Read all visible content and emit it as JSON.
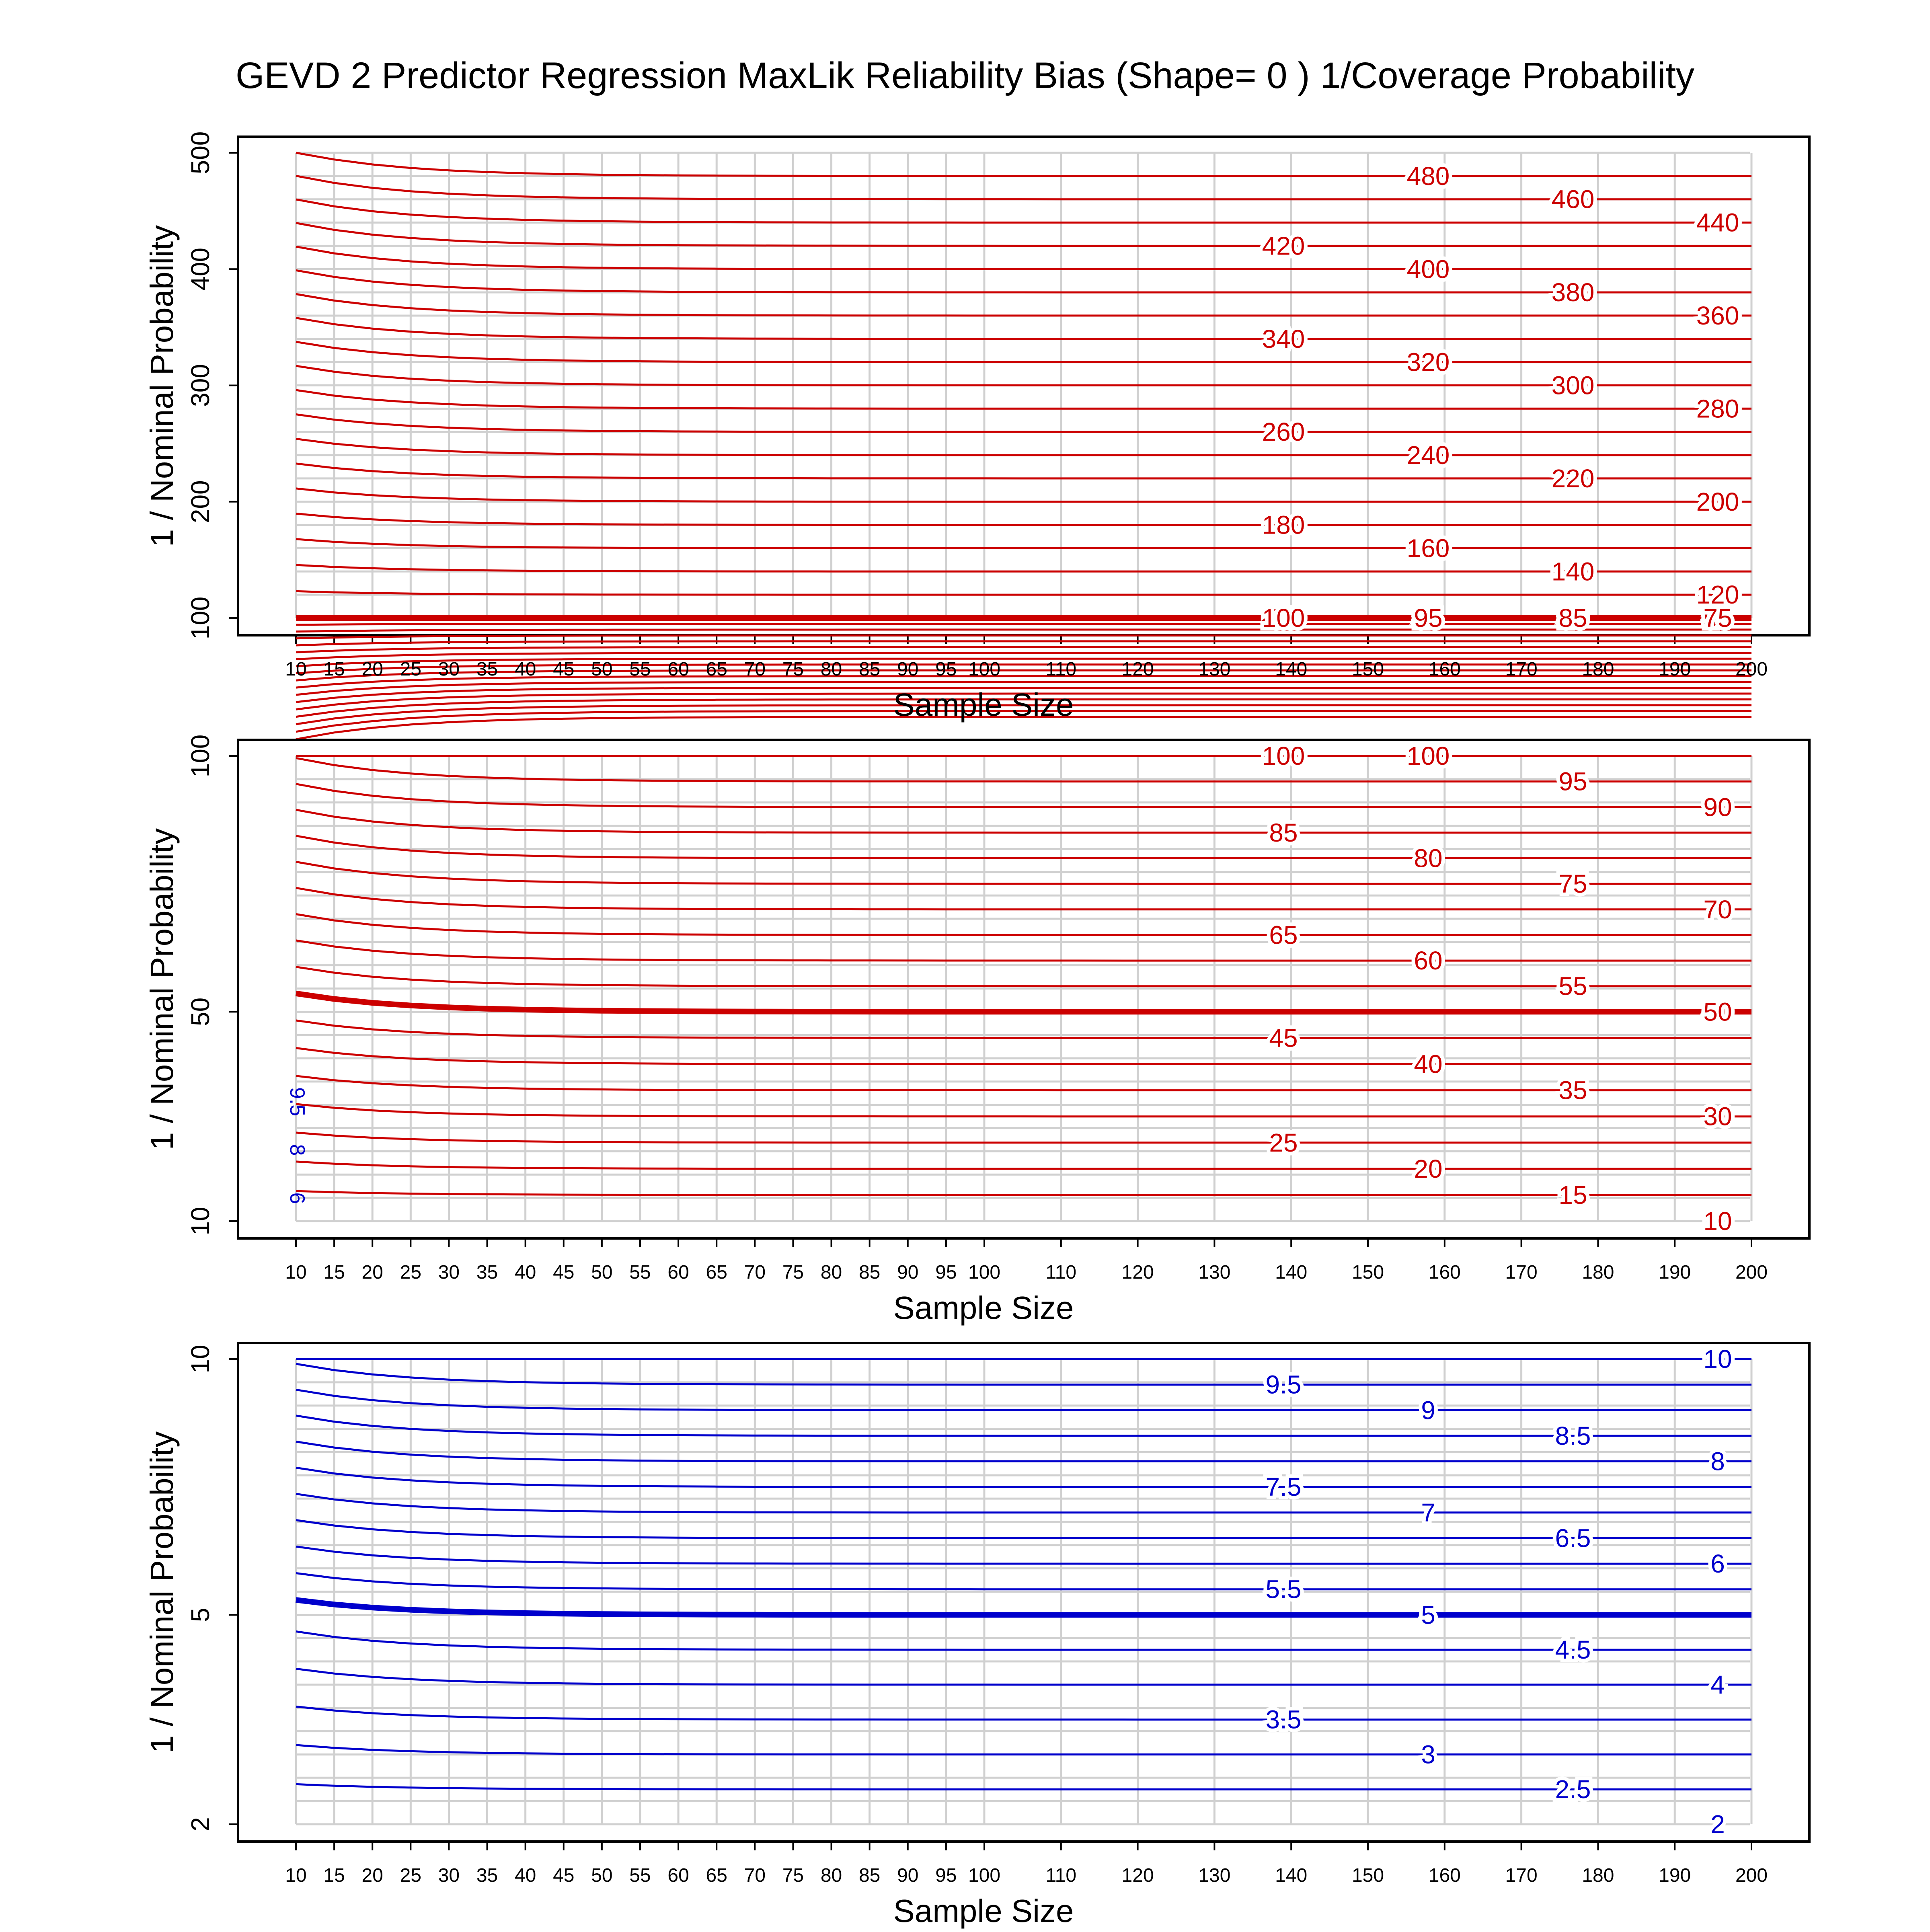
{
  "title": "GEVD 2 Predictor Regression MaxLik Reliability Bias (Shape= 0 ) 1/Coverage Probability",
  "chart_data": [
    {
      "type": "contour",
      "xlabel": "Sample Size",
      "ylabel": "1 / Nominal Probability",
      "x_ticks": [
        10,
        15,
        20,
        25,
        30,
        35,
        40,
        45,
        50,
        55,
        60,
        65,
        70,
        75,
        80,
        85,
        90,
        95,
        100,
        110,
        120,
        130,
        140,
        150,
        160,
        170,
        180,
        190,
        200
      ],
      "y_ticks": [
        100,
        200,
        300,
        400,
        500
      ],
      "xlim": [
        10,
        200
      ],
      "ylim": [
        100,
        500
      ],
      "grid": true,
      "line_color": "#cc0000",
      "contour_levels": [
        15,
        20,
        25,
        30,
        35,
        40,
        45,
        50,
        55,
        60,
        65,
        70,
        75,
        80,
        85,
        90,
        95,
        100,
        120,
        140,
        160,
        180,
        200,
        220,
        240,
        260,
        280,
        300,
        320,
        340,
        360,
        380,
        400,
        420,
        440,
        460,
        480
      ],
      "labeled_levels": [
        "15",
        "20",
        "25",
        "30",
        "35",
        "40",
        "45",
        "50",
        "55",
        "60",
        "65",
        "70",
        "75",
        "85",
        "95",
        "100",
        "120",
        "140",
        "160",
        "180",
        "200",
        "220",
        "240",
        "260",
        "280",
        "300",
        "320",
        "340",
        "360",
        "380",
        "400",
        "420",
        "440",
        "460",
        "480"
      ],
      "reference_level": 100
    },
    {
      "type": "contour",
      "xlabel": "Sample Size",
      "ylabel": "1 / Nominal Probability",
      "x_ticks": [
        10,
        15,
        20,
        25,
        30,
        35,
        40,
        45,
        50,
        55,
        60,
        65,
        70,
        75,
        80,
        85,
        90,
        95,
        100,
        110,
        120,
        130,
        140,
        150,
        160,
        170,
        180,
        190,
        200
      ],
      "y_ticks": [
        10,
        50,
        100
      ],
      "xlim": [
        10,
        200
      ],
      "ylim": [
        10,
        100
      ],
      "grid": true,
      "line_color": "#cc0000",
      "contour_levels": [
        15,
        20,
        25,
        30,
        35,
        40,
        45,
        50,
        55,
        60,
        65,
        70,
        75,
        80,
        85,
        90,
        95,
        100
      ],
      "labeled_levels": [
        "10",
        "15",
        "20",
        "25",
        "30",
        "35",
        "40",
        "45",
        "50",
        "55",
        "60",
        "65",
        "70",
        "75",
        "80",
        "85",
        "90",
        "95",
        "100",
        "100"
      ],
      "low_levels": [
        "9.5",
        "8",
        "6"
      ],
      "reference_level": 50
    },
    {
      "type": "contour",
      "xlabel": "Sample Size",
      "ylabel": "1 / Nominal Probability",
      "x_ticks": [
        10,
        15,
        20,
        25,
        30,
        35,
        40,
        45,
        50,
        55,
        60,
        65,
        70,
        75,
        80,
        85,
        90,
        95,
        100,
        110,
        120,
        130,
        140,
        150,
        160,
        170,
        180,
        190,
        200
      ],
      "y_ticks": [
        2,
        5,
        10
      ],
      "xlim": [
        10,
        200
      ],
      "ylim": [
        2,
        10
      ],
      "grid": true,
      "line_color": "#0000cc",
      "contour_levels": [
        2.5,
        3,
        3.5,
        4,
        4.5,
        5,
        5.5,
        6,
        6.5,
        7,
        7.5,
        8,
        8.5,
        9,
        9.5,
        10
      ],
      "labeled_levels": [
        "2",
        "2.5",
        "3",
        "3.5",
        "4",
        "4.5",
        "5",
        "5.5",
        "6",
        "6.5",
        "7",
        "7.5",
        "8",
        "8.5",
        "9",
        "9.5",
        "10"
      ],
      "reference_level": 5
    }
  ]
}
